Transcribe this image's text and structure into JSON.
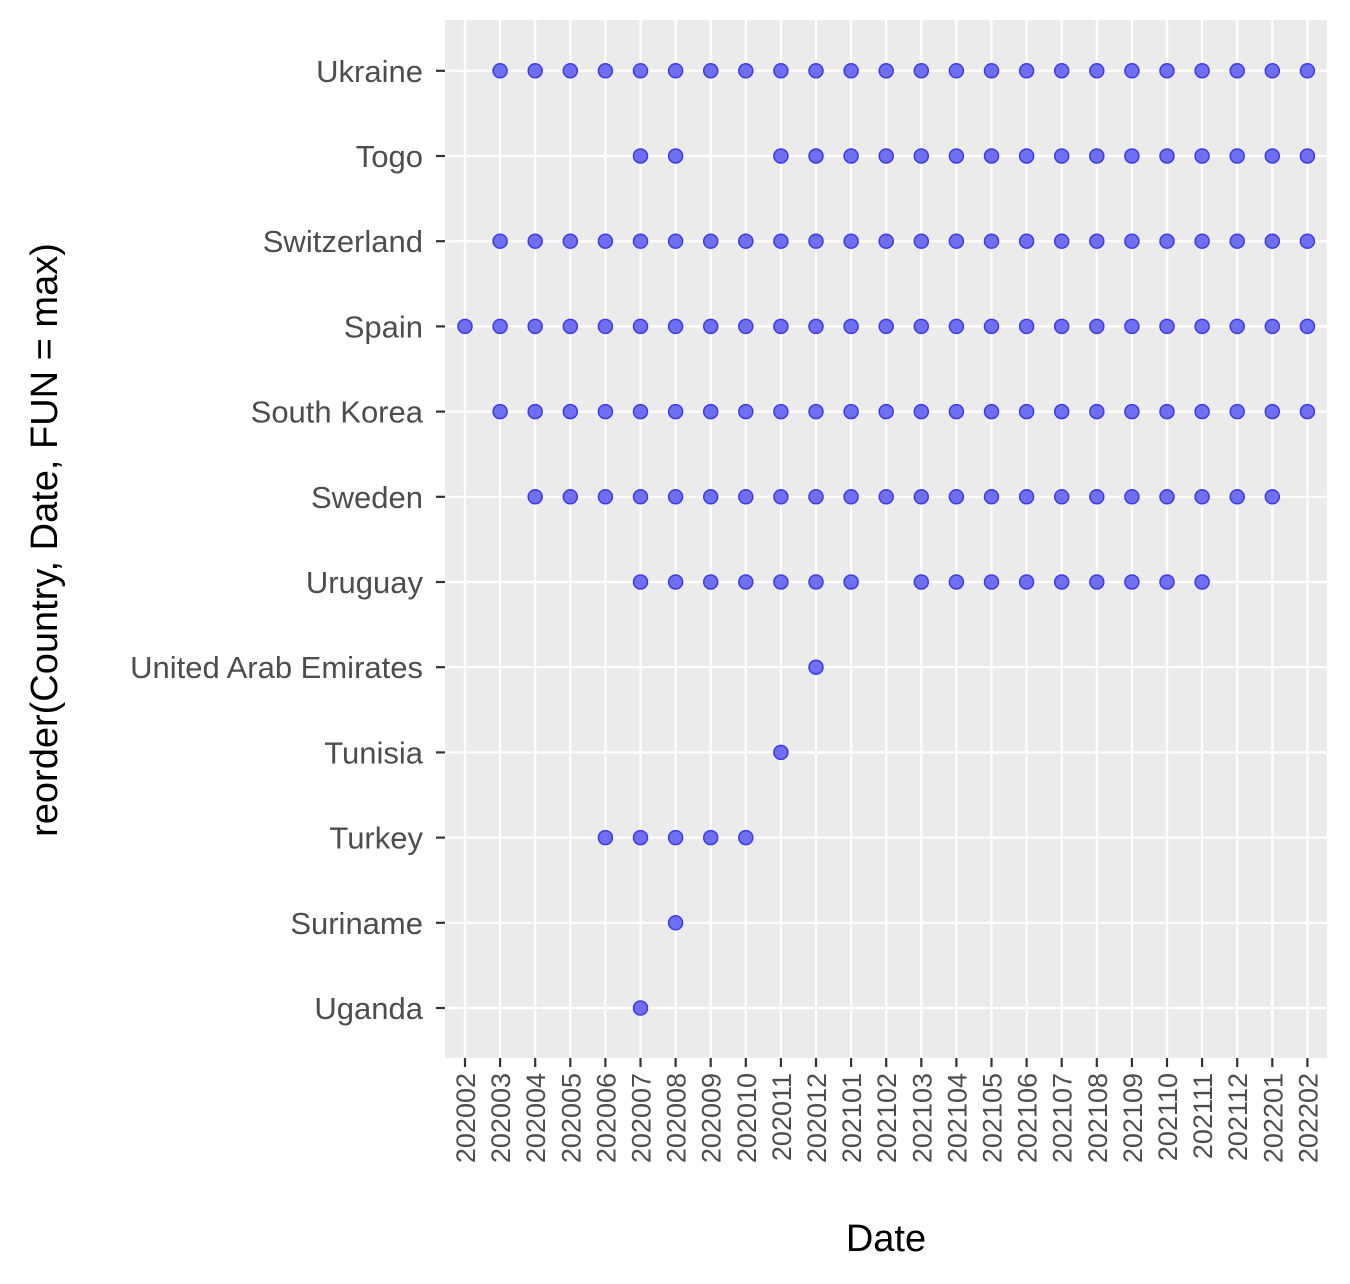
{
  "chart_data": {
    "type": "scatter",
    "xlabel": "Date",
    "ylabel": "reorder(Country, Date, FUN = max)",
    "x_categories": [
      "202002",
      "202003",
      "202004",
      "202005",
      "202006",
      "202007",
      "202008",
      "202009",
      "202010",
      "202011",
      "202012",
      "202101",
      "202102",
      "202103",
      "202104",
      "202105",
      "202106",
      "202107",
      "202108",
      "202109",
      "202110",
      "202111",
      "202112",
      "202201",
      "202202"
    ],
    "y_categories": [
      "Uganda",
      "Suriname",
      "Turkey",
      "Tunisia",
      "United Arab Emirates",
      "Uruguay",
      "Sweden",
      "South Korea",
      "Spain",
      "Switzerland",
      "Togo",
      "Ukraine"
    ],
    "points": {
      "Ukraine": [
        "202003",
        "202004",
        "202005",
        "202006",
        "202007",
        "202008",
        "202009",
        "202010",
        "202011",
        "202012",
        "202101",
        "202102",
        "202103",
        "202104",
        "202105",
        "202106",
        "202107",
        "202108",
        "202109",
        "202110",
        "202111",
        "202112",
        "202201",
        "202202"
      ],
      "Togo": [
        "202007",
        "202008",
        "202011",
        "202012",
        "202101",
        "202102",
        "202103",
        "202104",
        "202105",
        "202106",
        "202107",
        "202108",
        "202109",
        "202110",
        "202111",
        "202112",
        "202201",
        "202202"
      ],
      "Switzerland": [
        "202003",
        "202004",
        "202005",
        "202006",
        "202007",
        "202008",
        "202009",
        "202010",
        "202011",
        "202012",
        "202101",
        "202102",
        "202103",
        "202104",
        "202105",
        "202106",
        "202107",
        "202108",
        "202109",
        "202110",
        "202111",
        "202112",
        "202201",
        "202202"
      ],
      "Spain": [
        "202002",
        "202003",
        "202004",
        "202005",
        "202006",
        "202007",
        "202008",
        "202009",
        "202010",
        "202011",
        "202012",
        "202101",
        "202102",
        "202103",
        "202104",
        "202105",
        "202106",
        "202107",
        "202108",
        "202109",
        "202110",
        "202111",
        "202112",
        "202201",
        "202202"
      ],
      "South Korea": [
        "202003",
        "202004",
        "202005",
        "202006",
        "202007",
        "202008",
        "202009",
        "202010",
        "202011",
        "202012",
        "202101",
        "202102",
        "202103",
        "202104",
        "202105",
        "202106",
        "202107",
        "202108",
        "202109",
        "202110",
        "202111",
        "202112",
        "202201",
        "202202"
      ],
      "Sweden": [
        "202004",
        "202005",
        "202006",
        "202007",
        "202008",
        "202009",
        "202010",
        "202011",
        "202012",
        "202101",
        "202102",
        "202103",
        "202104",
        "202105",
        "202106",
        "202107",
        "202108",
        "202109",
        "202110",
        "202111",
        "202112",
        "202201"
      ],
      "Uruguay": [
        "202007",
        "202008",
        "202009",
        "202010",
        "202011",
        "202012",
        "202101",
        "202103",
        "202104",
        "202105",
        "202106",
        "202107",
        "202108",
        "202109",
        "202110",
        "202111"
      ],
      "United Arab Emirates": [
        "202012"
      ],
      "Tunisia": [
        "202011"
      ],
      "Turkey": [
        "202006",
        "202007",
        "202008",
        "202009",
        "202010"
      ],
      "Suriname": [
        "202008"
      ],
      "Uganda": [
        "202007"
      ]
    },
    "point_color": "#6f6ff4",
    "point_stroke": "#3b3be0",
    "panel_background": "#ebebeb",
    "grid": true
  }
}
